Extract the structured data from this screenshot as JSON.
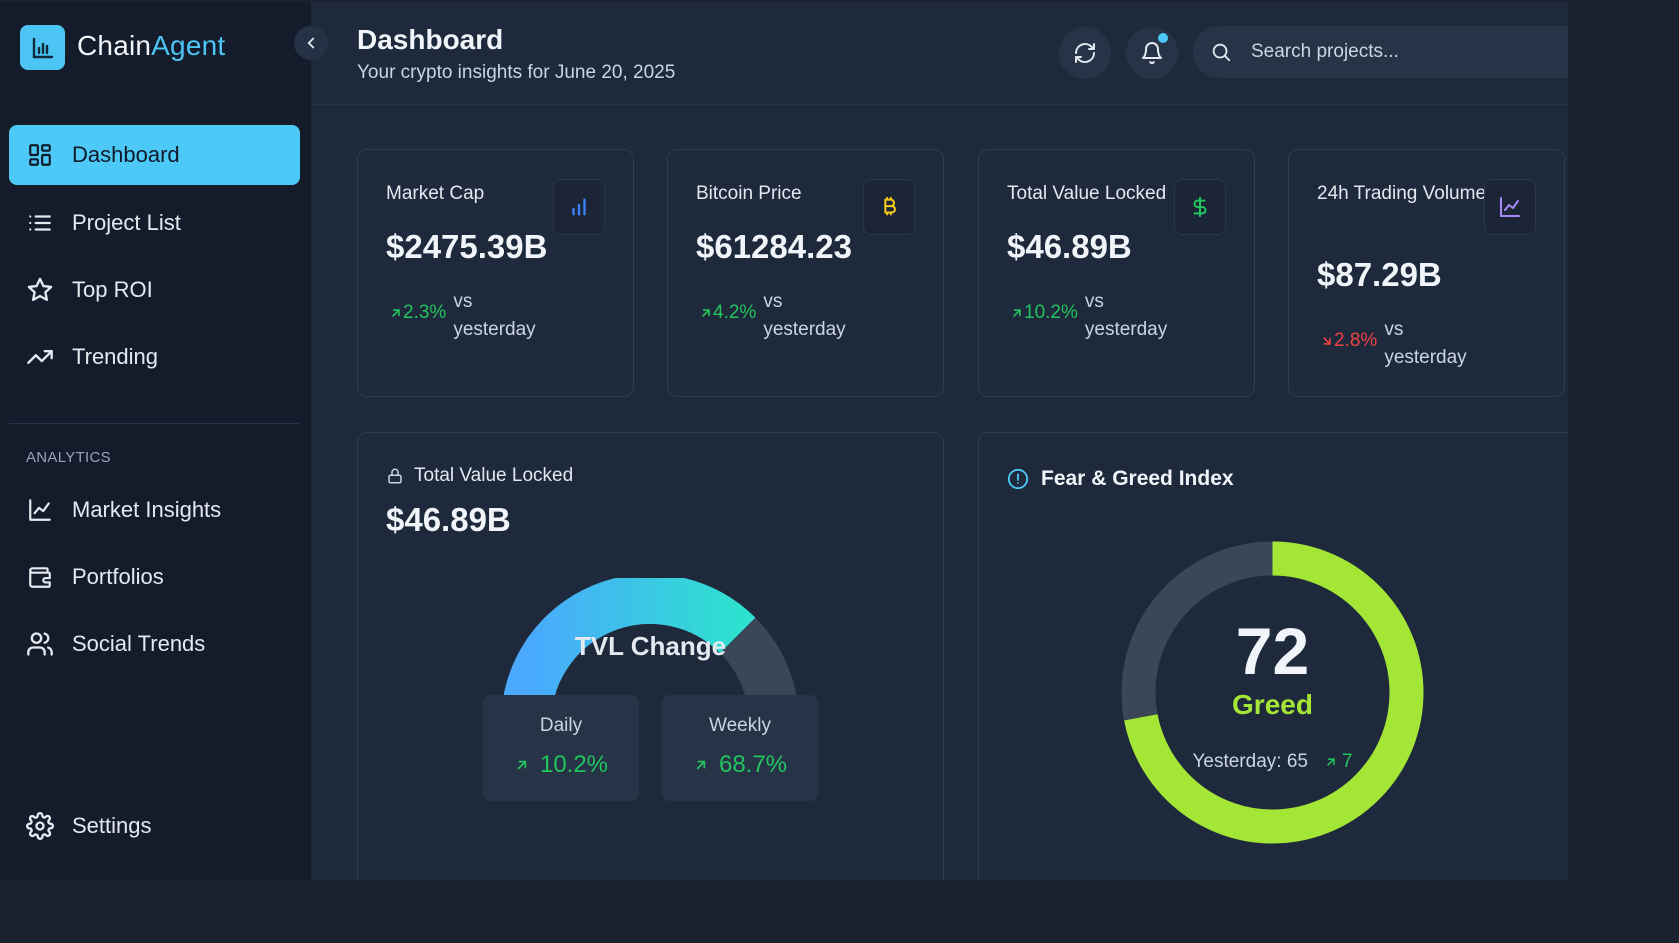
{
  "brand": {
    "part1": "Chain",
    "part2": "Agent"
  },
  "sidebar": {
    "nav": [
      {
        "label": "Dashboard",
        "icon": "grid-icon",
        "active": true
      },
      {
        "label": "Project List",
        "icon": "list-icon"
      },
      {
        "label": "Top ROI",
        "icon": "star-icon"
      },
      {
        "label": "Trending",
        "icon": "trending-up-icon"
      }
    ],
    "section_label": "ANALYTICS",
    "analytics": [
      {
        "label": "Market Insights",
        "icon": "line-chart-icon"
      },
      {
        "label": "Portfolios",
        "icon": "wallet-icon"
      },
      {
        "label": "Social Trends",
        "icon": "users-icon"
      }
    ],
    "settings_label": "Settings"
  },
  "header": {
    "title": "Dashboard",
    "subtitle": "Your crypto insights for June 20, 2025",
    "search_placeholder": "Search projects..."
  },
  "stats": [
    {
      "label": "Market Cap",
      "value": "$2475.39B",
      "change": "2.3%",
      "direction": "up",
      "vs": "vs yesterday",
      "icon": "bar-chart-icon",
      "icon_color": "#3b82f6"
    },
    {
      "label": "Bitcoin Price",
      "value": "$61284.23",
      "change": "4.2%",
      "direction": "up",
      "vs": "vs yesterday",
      "icon": "bitcoin-icon",
      "icon_color": "#facc15"
    },
    {
      "label": "Total Value Locked",
      "value": "$46.89B",
      "change": "10.2%",
      "direction": "up",
      "vs": "vs yesterday",
      "icon": "dollar-icon",
      "icon_color": "#22c55e"
    },
    {
      "label": "24h Trading Volume",
      "value": "$87.29B",
      "change": "2.8%",
      "direction": "down",
      "vs": "vs yesterday",
      "icon": "line-chart-icon",
      "icon_color": "#a78bfa"
    }
  ],
  "tvl": {
    "title": "Total Value Locked",
    "value": "$46.89B",
    "gauge_label": "TVL Change",
    "gauge_fill_fraction": 0.75,
    "daily_label": "Daily",
    "daily_value": "10.2%",
    "weekly_label": "Weekly",
    "weekly_value": "68.7%"
  },
  "fear_greed": {
    "title": "Fear & Greed Index",
    "value": 72,
    "max": 100,
    "sentiment": "Greed",
    "yesterday_text": "Yesterday: 65",
    "delta": "7",
    "ring_color": "#a3e635",
    "track_color": "#3b4657"
  }
}
